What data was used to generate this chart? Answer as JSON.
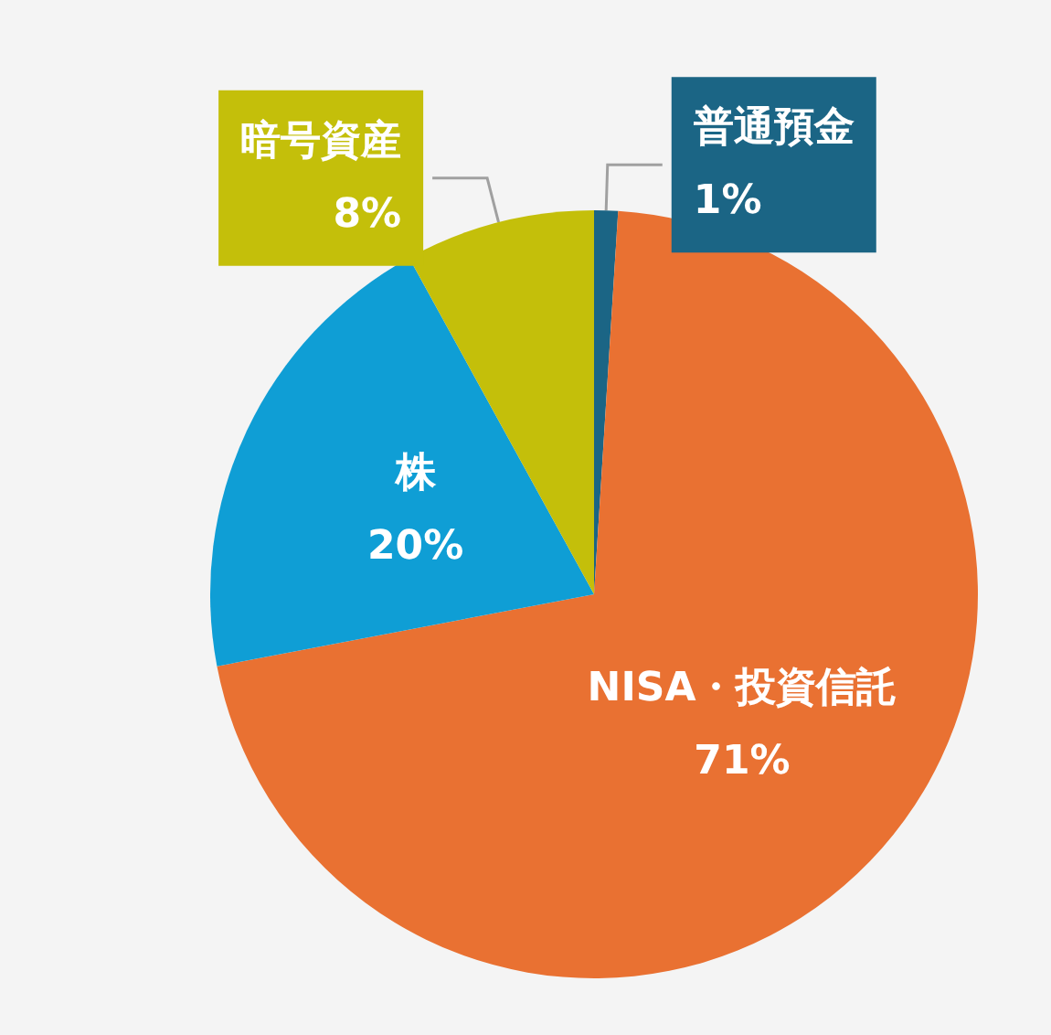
{
  "chart_data": {
    "type": "pie",
    "categories": [
      "普通預金",
      "NISA・投資信託",
      "株",
      "暗号資産"
    ],
    "values": [
      1,
      71,
      20,
      8
    ],
    "colors": [
      "#1b6585",
      "#e97132",
      "#0f9ed5",
      "#c4bf0a"
    ],
    "value_labels": [
      "1%",
      "71%",
      "20%",
      "8%"
    ],
    "legend": false
  }
}
